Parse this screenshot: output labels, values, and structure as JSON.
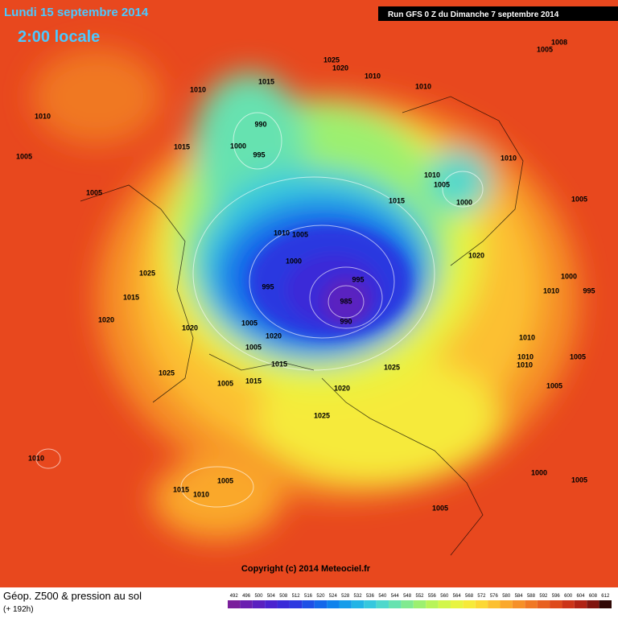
{
  "header": {
    "date": "Lundi 15 septembre 2014",
    "time": "2:00 locale",
    "run": "Run GFS 0 Z du Dimanche 7 septembre 2014"
  },
  "copyright": "Copyright (c) 2014 Meteociel.fr",
  "footer": {
    "title": "Géop. Z500 & pression au sol",
    "lead": "(+ 192h)"
  },
  "pressure_labels": [
    "1025",
    "1020",
    "1010",
    "1008",
    "1005",
    "1015",
    "1010",
    "1010",
    "1010",
    "990",
    "1000",
    "995",
    "1015",
    "1005",
    "1010",
    "1005",
    "1000",
    "1010",
    "1005",
    "1015",
    "1005",
    "1010",
    "1005",
    "1020",
    "1000",
    "1025",
    "995",
    "995",
    "1000",
    "995",
    "1010",
    "1015",
    "985",
    "1020",
    "990",
    "1020",
    "1005",
    "1020",
    "1005",
    "1010",
    "1010",
    "1005",
    "1015",
    "1025",
    "1010",
    "1025",
    "1005",
    "1015",
    "1020",
    "1005",
    "1025",
    "1010",
    "1005",
    "1015",
    "1010",
    "1000",
    "1005",
    "1005"
  ],
  "legend": {
    "values": [
      492,
      496,
      500,
      504,
      508,
      512,
      516,
      520,
      524,
      528,
      532,
      536,
      540,
      544,
      548,
      552,
      556,
      560,
      564,
      568,
      572,
      576,
      580,
      584,
      588,
      592,
      596,
      600,
      604,
      608,
      612
    ],
    "colors": [
      "#7a1f9b",
      "#6a1fb0",
      "#5a20c0",
      "#4a22cf",
      "#3a2ad8",
      "#2c38e0",
      "#1e50e6",
      "#1468ea",
      "#0f82ec",
      "#169cea",
      "#22b4e6",
      "#36c8de",
      "#4ed8cc",
      "#66e2b0",
      "#80ea90",
      "#9cf070",
      "#b8f458",
      "#d2f64a",
      "#e8f440",
      "#f6ea3a",
      "#fcd834",
      "#fcc030",
      "#faa82c",
      "#f69028",
      "#f07824",
      "#e86020",
      "#de4a1c",
      "#cc3418",
      "#b02214",
      "#80140e",
      "#300806"
    ]
  }
}
